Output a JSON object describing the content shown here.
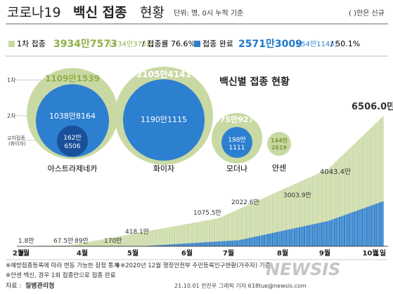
{
  "header": {
    "title_regular": "코로나19",
    "title_bold": "백신 접종",
    "title_tail": "현황",
    "unit": "단위: 명, 0시 누적 기준",
    "paren_note": "( )안은 신규"
  },
  "stats": {
    "first_label": "1차 접종",
    "first_value": "3934만7573",
    "first_new": "(+34만3752)",
    "first_rate": "/ 접종률 76.6%",
    "complete_label": "접종 완료",
    "complete_value": "2571만3009",
    "complete_new": "(+54만1143)",
    "complete_rate": "/ 50.1%"
  },
  "bubbles": {
    "title": "백신별 접종 현황",
    "axis_1": "1차",
    "axis_2": "2차",
    "booster_label_1": "교차접종",
    "booster_label_2": "(화이자)",
    "items": [
      {
        "name": "아스트라제네카",
        "first": "1109만1539",
        "second": "1038만8164",
        "cross_1": "162만",
        "cross_2": "6506"
      },
      {
        "name": "화이자",
        "first": "2105만4141",
        "second": "1190만1115"
      },
      {
        "name": "모더나",
        "first": "575만9274",
        "second_1": "198만",
        "second_2": "1111"
      },
      {
        "name": "얀센",
        "first_1": "144만",
        "first_2": "2619"
      }
    ]
  },
  "chart_data": {
    "type": "bar",
    "x_labels": [
      "2월",
      "3월",
      "4월",
      "5월",
      "6월",
      "7월",
      "8월",
      "9월",
      "10월",
      "1일"
    ],
    "series": [],
    "annotations": [
      "1.8만",
      "67.5만",
      "89만",
      "170만",
      "418.1만",
      "1075.5만",
      "2022.6만",
      "3003.9만",
      "4043.4만",
      "6506.0만"
    ],
    "colors": {
      "first_dose": "#c9d9a3",
      "complete": "#2d7fd0"
    }
  },
  "footer": {
    "note_1": "※예방접종등록에 따라 변동 가능한 잠정 통계",
    "note_2": "※※2020년 12월 행정안전부 주민등록인구현황(거주자) 기준",
    "note_3": "※얀센 백신, 경우 1회 접종만으로 접종 완료",
    "source_label": "자료 :",
    "source": "질병관리청",
    "credit": "21.10.01 전진우 그래픽 기자 618tue@newsis.com",
    "watermark": "NEWSIS"
  }
}
